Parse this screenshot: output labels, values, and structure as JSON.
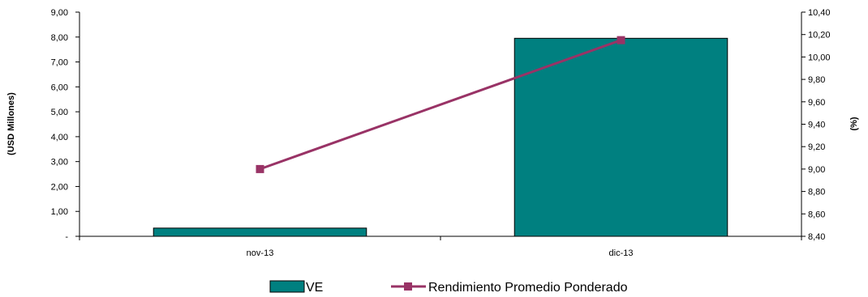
{
  "chart_data": {
    "type": "bar+line",
    "categories": [
      "nov-13",
      "dic-13"
    ],
    "series": [
      {
        "name": "VE",
        "type": "bar",
        "axis": "left",
        "color": "#008080",
        "values": [
          0.33,
          7.95
        ]
      },
      {
        "name": "Rendimiento Promedio Ponderado",
        "type": "line",
        "axis": "right",
        "color": "#993366",
        "marker": "square",
        "values": [
          9.0,
          10.15
        ]
      }
    ],
    "ylabel_left": "(USD Millones)",
    "ylabel_right": "(%)",
    "ylim_left": [
      0,
      9
    ],
    "ylim_right": [
      8.4,
      10.4
    ],
    "yticks_left": [
      "-",
      "1,00",
      "2,00",
      "3,00",
      "4,00",
      "5,00",
      "6,00",
      "7,00",
      "8,00",
      "9,00"
    ],
    "yticks_right": [
      "8,40",
      "8,60",
      "8,80",
      "9,00",
      "9,20",
      "9,40",
      "9,60",
      "9,80",
      "10,00",
      "10,20",
      "10,40"
    ],
    "grid": false,
    "legend_position": "bottom"
  }
}
